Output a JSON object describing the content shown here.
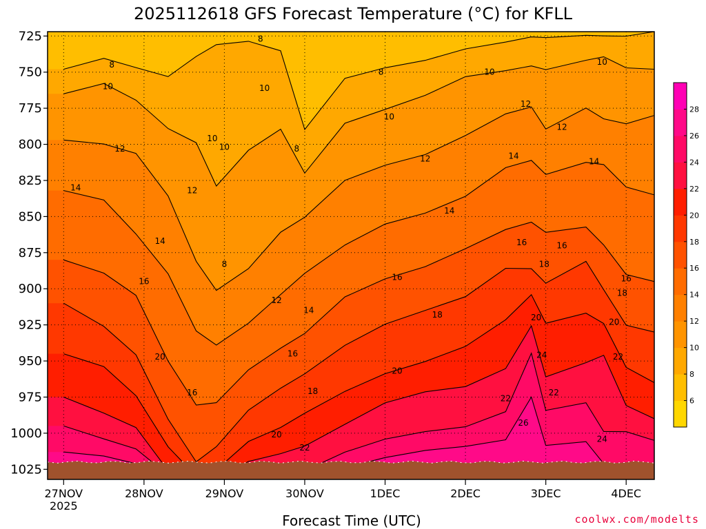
{
  "chart_data": {
    "type": "heatmap",
    "title": "2025112618 GFS Forecast Temperature (°C) for KFLL",
    "xlabel": "Forecast Time (UTC)",
    "ylabel": "",
    "credit": "coolwx.com/modelts",
    "x_ticks": [
      "27NOV",
      "28NOV",
      "29NOV",
      "30NOV",
      "1DEC",
      "2DEC",
      "3DEC",
      "4DEC"
    ],
    "x_tick_year": "2025",
    "x_range_days": [
      -0.2,
      7.35
    ],
    "y_ticks": [
      725,
      750,
      775,
      800,
      825,
      850,
      875,
      900,
      925,
      950,
      975,
      1000,
      1025
    ],
    "y_range_hpa": [
      722,
      1032
    ],
    "surface_pressure_hpa": 1020,
    "colorbar": {
      "levels": [
        4,
        6,
        8,
        10,
        12,
        14,
        16,
        18,
        20,
        22,
        24,
        26,
        28,
        30
      ],
      "labels": [
        "6",
        "8",
        "10",
        "12",
        "14",
        "16",
        "18",
        "20",
        "22",
        "24",
        "26",
        "28"
      ],
      "colors": [
        "#ffd700",
        "#ffbe00",
        "#ffa800",
        "#ff9400",
        "#ff8000",
        "#ff6c00",
        "#ff5200",
        "#ff3800",
        "#ff1e00",
        "#ff1040",
        "#ff0a66",
        "#ff0a88",
        "#ff00b4"
      ]
    },
    "contour_levels": [
      8,
      10,
      12,
      14,
      16,
      18,
      20,
      22,
      24,
      26
    ],
    "contour_label_text": [
      "8",
      "10",
      "12",
      "14",
      "16",
      "18",
      "20",
      "22",
      "24",
      "26"
    ],
    "columns": [
      {
        "day": 0.0,
        "isotherm_hpa": {
          "8": 748,
          "10": 765,
          "12": 797,
          "14": 832,
          "16": 880,
          "18": 910,
          "20": 945,
          "22": 975,
          "24": 995,
          "26": 1013
        }
      },
      {
        "day": 0.5,
        "isotherm_hpa": {
          "8": 740,
          "10": 758,
          "12": 800,
          "14": 838,
          "16": 890,
          "18": 925,
          "20": 955,
          "22": 985,
          "24": 1005,
          "26": 1015
        }
      },
      {
        "day": 0.9,
        "isotherm_hpa": {
          "8": 746,
          "10": 770,
          "12": 806,
          "14": 862,
          "16": 905,
          "18": 945,
          "20": 975,
          "22": 995,
          "24": 1012,
          "26": 1020
        }
      },
      {
        "day": 1.3,
        "isotherm_hpa": {
          "8": 752,
          "10": 790,
          "12": 835,
          "14": 890,
          "16": 950,
          "18": 990,
          "20": 1010,
          "22": 1025,
          "24": 1030,
          "26": 1032
        }
      },
      {
        "day": 1.65,
        "isotherm_hpa": {
          "8": 738,
          "10": 800,
          "12": 880,
          "14": 930,
          "16": 980,
          "18": 1020,
          "20": 1030,
          "22": 1032,
          "24": 1032,
          "26": 1032
        }
      },
      {
        "day": 1.9,
        "isotherm_hpa": {
          "8": 730,
          "10": 830,
          "12": 900,
          "14": 940,
          "16": 978,
          "18": 1010,
          "20": 1025,
          "22": 1032,
          "24": 1032,
          "26": 1032
        }
      },
      {
        "day": 2.3,
        "isotherm_hpa": {
          "8": 728,
          "10": 805,
          "12": 885,
          "14": 925,
          "16": 955,
          "18": 985,
          "20": 1005,
          "22": 1020,
          "24": 1032,
          "26": 1032
        }
      },
      {
        "day": 2.7,
        "isotherm_hpa": {
          "8": 735,
          "10": 790,
          "12": 860,
          "14": 905,
          "16": 940,
          "18": 970,
          "20": 995,
          "22": 1015,
          "24": 1032,
          "26": 1032
        }
      },
      {
        "day": 3.0,
        "isotherm_hpa": {
          "8": 790,
          "10": 820,
          "12": 850,
          "14": 890,
          "16": 930,
          "18": 960,
          "20": 985,
          "22": 1010,
          "24": 1025,
          "26": 1032
        }
      },
      {
        "day": 3.5,
        "isotherm_hpa": {
          "8": 755,
          "10": 785,
          "12": 825,
          "14": 870,
          "16": 905,
          "18": 940,
          "20": 970,
          "22": 995,
          "24": 1012,
          "26": 1025
        }
      },
      {
        "day": 4.0,
        "isotherm_hpa": {
          "8": 748,
          "10": 775,
          "12": 815,
          "14": 855,
          "16": 893,
          "18": 925,
          "20": 958,
          "22": 980,
          "24": 1003,
          "26": 1018
        }
      },
      {
        "day": 4.5,
        "isotherm_hpa": {
          "8": 743,
          "10": 765,
          "12": 808,
          "14": 847,
          "16": 885,
          "18": 915,
          "20": 950,
          "22": 972,
          "24": 998,
          "26": 1013
        }
      },
      {
        "day": 5.0,
        "isotherm_hpa": {
          "8": 735,
          "10": 752,
          "12": 795,
          "14": 835,
          "16": 873,
          "18": 905,
          "20": 940,
          "22": 968,
          "24": 995,
          "26": 1010
        }
      },
      {
        "day": 5.5,
        "isotherm_hpa": {
          "8": 730,
          "10": 748,
          "12": 780,
          "14": 815,
          "16": 860,
          "18": 885,
          "20": 922,
          "22": 955,
          "24": 985,
          "26": 1005
        }
      },
      {
        "day": 5.82,
        "isotherm_hpa": {
          "8": 726,
          "10": 745,
          "12": 775,
          "14": 810,
          "16": 855,
          "18": 885,
          "20": 905,
          "22": 925,
          "24": 945,
          "26": 975
        }
      },
      {
        "day": 6.0,
        "isotherm_hpa": {
          "8": 726,
          "10": 748,
          "12": 790,
          "14": 820,
          "16": 862,
          "18": 895,
          "20": 925,
          "22": 960,
          "24": 985,
          "26": 1008
        }
      },
      {
        "day": 6.5,
        "isotherm_hpa": {
          "8": 724,
          "10": 742,
          "12": 775,
          "14": 812,
          "16": 858,
          "18": 880,
          "20": 918,
          "22": 950,
          "24": 980,
          "26": 1005
        }
      },
      {
        "day": 6.72,
        "isotherm_hpa": {
          "8": 724,
          "10": 740,
          "12": 782,
          "14": 814,
          "16": 870,
          "18": 900,
          "20": 925,
          "22": 945,
          "24": 1000,
          "26": 1020
        }
      },
      {
        "day": 7.0,
        "isotherm_hpa": {
          "8": 724,
          "10": 748,
          "12": 785,
          "14": 830,
          "16": 890,
          "18": 925,
          "20": 955,
          "22": 980,
          "24": 1000,
          "26": 1020
        }
      },
      {
        "day": 7.35,
        "isotherm_hpa": {
          "8": 722,
          "10": 748,
          "12": 780,
          "14": 835,
          "16": 895,
          "18": 930,
          "20": 965,
          "22": 990,
          "24": 1005,
          "26": 1022
        }
      }
    ],
    "contour_label_positions": [
      {
        "t": "8",
        "day": 0.6,
        "p": 745
      },
      {
        "t": "8",
        "day": 2.45,
        "p": 727
      },
      {
        "t": "8",
        "day": 3.95,
        "p": 750
      },
      {
        "t": "8",
        "day": 2.9,
        "p": 803
      },
      {
        "t": "8",
        "day": 2.0,
        "p": 883
      },
      {
        "t": "10",
        "day": 0.55,
        "p": 760
      },
      {
        "t": "10",
        "day": 1.85,
        "p": 796
      },
      {
        "t": "10",
        "day": 2.5,
        "p": 761
      },
      {
        "t": "10",
        "day": 4.05,
        "p": 781
      },
      {
        "t": "10",
        "day": 5.3,
        "p": 750
      },
      {
        "t": "10",
        "day": 6.7,
        "p": 743
      },
      {
        "t": "10",
        "day": 2.0,
        "p": 802
      },
      {
        "t": "12",
        "day": 0.7,
        "p": 803
      },
      {
        "t": "12",
        "day": 1.6,
        "p": 832
      },
      {
        "t": "12",
        "day": 2.65,
        "p": 908
      },
      {
        "t": "12",
        "day": 4.5,
        "p": 810
      },
      {
        "t": "12",
        "day": 5.75,
        "p": 772
      },
      {
        "t": "12",
        "day": 6.2,
        "p": 788
      },
      {
        "t": "14",
        "day": 0.15,
        "p": 830
      },
      {
        "t": "14",
        "day": 1.2,
        "p": 867
      },
      {
        "t": "14",
        "day": 3.05,
        "p": 915
      },
      {
        "t": "14",
        "day": 4.8,
        "p": 846
      },
      {
        "t": "14",
        "day": 5.6,
        "p": 808
      },
      {
        "t": "14",
        "day": 6.6,
        "p": 812
      },
      {
        "t": "16",
        "day": 1.0,
        "p": 895
      },
      {
        "t": "16",
        "day": 1.6,
        "p": 972
      },
      {
        "t": "16",
        "day": 2.85,
        "p": 945
      },
      {
        "t": "16",
        "day": 4.15,
        "p": 892
      },
      {
        "t": "16",
        "day": 5.7,
        "p": 868
      },
      {
        "t": "16",
        "day": 6.2,
        "p": 870
      },
      {
        "t": "16",
        "day": 7.0,
        "p": 893
      },
      {
        "t": "18",
        "day": 3.1,
        "p": 971
      },
      {
        "t": "18",
        "day": 4.65,
        "p": 918
      },
      {
        "t": "18",
        "day": 5.98,
        "p": 883
      },
      {
        "t": "18",
        "day": 6.95,
        "p": 903
      },
      {
        "t": "20",
        "day": 1.2,
        "p": 947
      },
      {
        "t": "20",
        "day": 2.65,
        "p": 1001
      },
      {
        "t": "20",
        "day": 4.15,
        "p": 957
      },
      {
        "t": "20",
        "day": 5.88,
        "p": 920
      },
      {
        "t": "20",
        "day": 6.85,
        "p": 923
      },
      {
        "t": "22",
        "day": 3.0,
        "p": 1010
      },
      {
        "t": "22",
        "day": 5.5,
        "p": 976
      },
      {
        "t": "22",
        "day": 6.1,
        "p": 972
      },
      {
        "t": "22",
        "day": 6.9,
        "p": 947
      },
      {
        "t": "24",
        "day": 5.95,
        "p": 946
      },
      {
        "t": "24",
        "day": 6.7,
        "p": 1004
      },
      {
        "t": "26",
        "day": 5.72,
        "p": 993
      }
    ]
  }
}
